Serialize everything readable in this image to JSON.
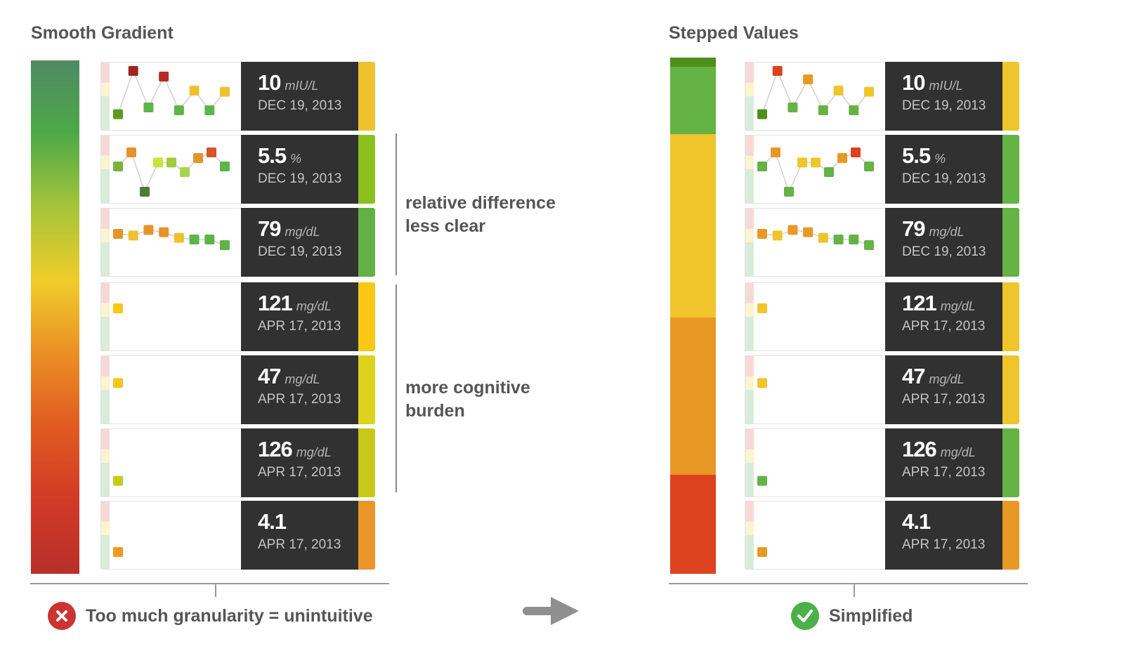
{
  "left": {
    "title": "Smooth Gradient",
    "gradient": [
      "#4e8a63",
      "#4ea948",
      "#a6c43a",
      "#f0cd2a",
      "#ea8f25",
      "#e05a22",
      "#d23a26",
      "#b6302a"
    ],
    "cards": [
      {
        "value": "10",
        "unit": "mIU/L",
        "date": "DEC 19, 2013",
        "tab": "#f0c12e",
        "points": [
          [
            0.18,
            "#5a9b1e"
          ],
          [
            0.95,
            "#9e2620"
          ],
          [
            0.3,
            "#5db548"
          ],
          [
            0.85,
            "#b52b22"
          ],
          [
            0.25,
            "#5db548"
          ],
          [
            0.6,
            "#f0c12e"
          ],
          [
            0.25,
            "#5db548"
          ],
          [
            0.58,
            "#f0c12e"
          ]
        ]
      },
      {
        "value": "5.5",
        "unit": "%",
        "date": "DEC 19, 2013",
        "tab": "#8dc01e",
        "points": [
          [
            0.55,
            "#7cb23b"
          ],
          [
            0.8,
            "#e8922a"
          ],
          [
            0.1,
            "#4f7a3a"
          ],
          [
            0.62,
            "#c6e43a"
          ],
          [
            0.62,
            "#a0cc3a"
          ],
          [
            0.45,
            "#a6d64c"
          ],
          [
            0.7,
            "#e8922a"
          ],
          [
            0.8,
            "#d85424"
          ],
          [
            0.55,
            "#5db548"
          ]
        ]
      },
      {
        "value": "79",
        "unit": "mg/dL",
        "date": "DEC 19, 2013",
        "tab": "#62b046",
        "points": [
          [
            0.65,
            "#e8922a"
          ],
          [
            0.62,
            "#f0c12e"
          ],
          [
            0.72,
            "#e8922a"
          ],
          [
            0.68,
            "#e8922a"
          ],
          [
            0.58,
            "#f0c12e"
          ],
          [
            0.55,
            "#5db548"
          ],
          [
            0.55,
            "#5db548"
          ],
          [
            0.45,
            "#5db548"
          ]
        ]
      },
      {
        "value": "121",
        "unit": "mg/dL",
        "date": "APR 17, 2013",
        "tab": "#f8c814",
        "points": [
          [
            0.65,
            "#f8c814"
          ]
        ]
      },
      {
        "value": "47",
        "unit": "mg/dL",
        "date": "APR 17, 2013",
        "tab": "#ddd21c",
        "points": [
          [
            0.62,
            "#f0c81c"
          ]
        ]
      },
      {
        "value": "126",
        "unit": "mg/dL",
        "date": "APR 17, 2013",
        "tab": "#c8c81a",
        "points": [
          [
            0.18,
            "#c2cc1a"
          ]
        ]
      },
      {
        "value": "4.1",
        "unit": "",
        "date": "APR 17, 2013",
        "tab": "#e8962a",
        "points": [
          [
            0.2,
            "#ee9a22"
          ]
        ]
      }
    ],
    "notes": [
      {
        "lines": [
          "relative difference",
          "less clear"
        ]
      },
      {
        "lines": [
          "more cognitive",
          "burden"
        ]
      }
    ],
    "footer": "Too much granularity = unintuitive",
    "footer_icon": "x-circle-icon",
    "footer_color": "#cc3333"
  },
  "right": {
    "title": "Stepped Values",
    "steps": [
      {
        "color": "#4e8e1c",
        "fraction": 0.018
      },
      {
        "color": "#65b245",
        "fraction": 0.13
      },
      {
        "color": "#f0c52c",
        "fraction": 0.355
      },
      {
        "color": "#e89925",
        "fraction": 0.305
      },
      {
        "color": "#dc421e",
        "fraction": 0.192
      }
    ],
    "cards": [
      {
        "value": "10",
        "unit": "mIU/L",
        "date": "DEC 19, 2013",
        "tab": "#f0c52c",
        "points": [
          [
            0.18,
            "#4e8e1c"
          ],
          [
            0.95,
            "#dc421e"
          ],
          [
            0.3,
            "#65b245"
          ],
          [
            0.8,
            "#e89925"
          ],
          [
            0.25,
            "#65b245"
          ],
          [
            0.6,
            "#f0c52c"
          ],
          [
            0.25,
            "#65b245"
          ],
          [
            0.58,
            "#f0c52c"
          ]
        ]
      },
      {
        "value": "5.5",
        "unit": "%",
        "date": "DEC 19, 2013",
        "tab": "#65b245",
        "points": [
          [
            0.55,
            "#65b245"
          ],
          [
            0.8,
            "#e89925"
          ],
          [
            0.1,
            "#65b245"
          ],
          [
            0.62,
            "#f0c52c"
          ],
          [
            0.62,
            "#f0c52c"
          ],
          [
            0.45,
            "#65b245"
          ],
          [
            0.7,
            "#e89925"
          ],
          [
            0.8,
            "#dc421e"
          ],
          [
            0.55,
            "#65b245"
          ]
        ]
      },
      {
        "value": "79",
        "unit": "mg/dL",
        "date": "DEC 19, 2013",
        "tab": "#65b245",
        "points": [
          [
            0.65,
            "#e89925"
          ],
          [
            0.62,
            "#f0c52c"
          ],
          [
            0.72,
            "#e89925"
          ],
          [
            0.68,
            "#e89925"
          ],
          [
            0.58,
            "#f0c52c"
          ],
          [
            0.55,
            "#65b245"
          ],
          [
            0.55,
            "#65b245"
          ],
          [
            0.45,
            "#65b245"
          ]
        ]
      },
      {
        "value": "121",
        "unit": "mg/dL",
        "date": "APR 17, 2013",
        "tab": "#f0c52c",
        "points": [
          [
            0.65,
            "#f0c52c"
          ]
        ]
      },
      {
        "value": "47",
        "unit": "mg/dL",
        "date": "APR 17, 2013",
        "tab": "#f0c52c",
        "points": [
          [
            0.62,
            "#f0c52c"
          ]
        ]
      },
      {
        "value": "126",
        "unit": "mg/dL",
        "date": "APR 17, 2013",
        "tab": "#65b245",
        "points": [
          [
            0.18,
            "#65b245"
          ]
        ]
      },
      {
        "value": "4.1",
        "unit": "",
        "date": "APR 17, 2013",
        "tab": "#e89925",
        "points": [
          [
            0.2,
            "#e89925"
          ]
        ]
      }
    ],
    "footer": "Simplified",
    "footer_icon": "check-circle-icon",
    "footer_color": "#4cb04a"
  },
  "arrow_icon": "right-arrow-icon"
}
